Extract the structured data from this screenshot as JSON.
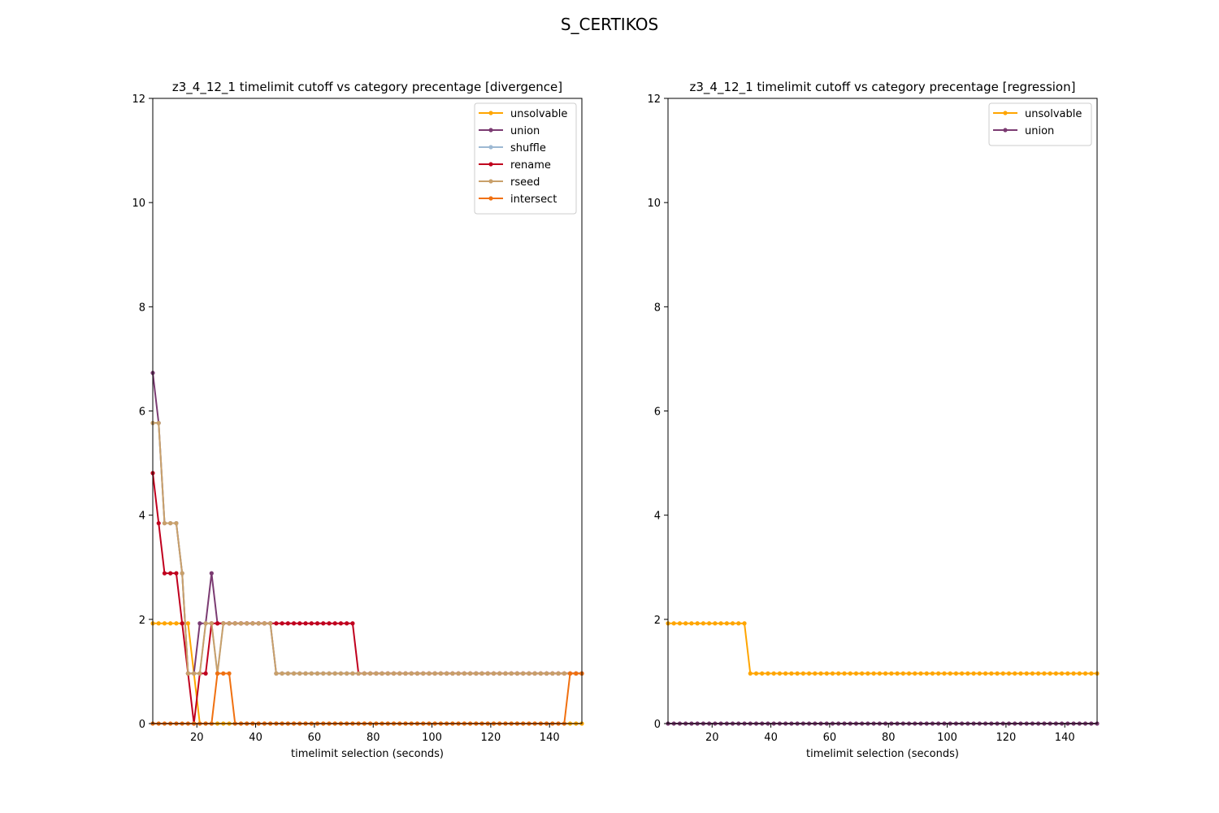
{
  "figure": {
    "suptitle": "S_CERTIKOS"
  },
  "chart_data": [
    {
      "type": "line",
      "title": "z3_4_12_1 timelimit cutoff vs category precentage [divergence]",
      "xlabel": "timelimit selection (seconds)",
      "ylabel": "",
      "xlim": [
        5,
        151
      ],
      "ylim": [
        0,
        12
      ],
      "xticks": [
        "20",
        "40",
        "60",
        "80",
        "100",
        "120",
        "140"
      ],
      "yticks": [
        "0",
        "2",
        "4",
        "6",
        "8",
        "10",
        "12"
      ],
      "grid": false,
      "legend_position": "top-right",
      "x_start": 5,
      "x_step": 2,
      "series": [
        {
          "name": "unsolvable",
          "color": "#FFA500",
          "segments": [
            {
              "from": 5,
              "to": 17,
              "value": 1.923
            },
            {
              "from": 19,
              "to": 19,
              "value": 0.962
            },
            {
              "from": 21,
              "to": 151,
              "value": 0
            }
          ]
        },
        {
          "name": "union",
          "color": "#7B3B72",
          "segments": [
            {
              "from": 5,
              "to": 5,
              "value": 6.731
            },
            {
              "from": 7,
              "to": 7,
              "value": 5.769
            },
            {
              "from": 9,
              "to": 13,
              "value": 3.846
            },
            {
              "from": 15,
              "to": 15,
              "value": 2.885
            },
            {
              "from": 17,
              "to": 19,
              "value": 0.962
            },
            {
              "from": 21,
              "to": 23,
              "value": 1.923
            },
            {
              "from": 25,
              "to": 25,
              "value": 2.885
            },
            {
              "from": 27,
              "to": 45,
              "value": 1.923
            },
            {
              "from": 47,
              "to": 151,
              "value": 0.962
            }
          ]
        },
        {
          "name": "shuffle",
          "color": "#9DB9D3",
          "segments": [
            {
              "from": 5,
              "to": 7,
              "value": 5.769
            },
            {
              "from": 9,
              "to": 13,
              "value": 3.846
            },
            {
              "from": 15,
              "to": 15,
              "value": 2.885
            },
            {
              "from": 17,
              "to": 21,
              "value": 0.962
            },
            {
              "from": 23,
              "to": 25,
              "value": 1.923
            },
            {
              "from": 27,
              "to": 27,
              "value": 0.962
            },
            {
              "from": 29,
              "to": 45,
              "value": 1.923
            },
            {
              "from": 47,
              "to": 151,
              "value": 0.962
            }
          ]
        },
        {
          "name": "rename",
          "color": "#C0001E",
          "segments": [
            {
              "from": 5,
              "to": 5,
              "value": 4.808
            },
            {
              "from": 7,
              "to": 7,
              "value": 3.846
            },
            {
              "from": 9,
              "to": 13,
              "value": 2.885
            },
            {
              "from": 15,
              "to": 15,
              "value": 1.923
            },
            {
              "from": 17,
              "to": 17,
              "value": 0.962
            },
            {
              "from": 19,
              "to": 19,
              "value": 0
            },
            {
              "from": 21,
              "to": 23,
              "value": 0.962
            },
            {
              "from": 25,
              "to": 73,
              "value": 1.923
            },
            {
              "from": 75,
              "to": 151,
              "value": 0.962
            }
          ]
        },
        {
          "name": "rseed",
          "color": "#C9A06A",
          "segments": [
            {
              "from": 5,
              "to": 7,
              "value": 5.769
            },
            {
              "from": 9,
              "to": 13,
              "value": 3.846
            },
            {
              "from": 15,
              "to": 15,
              "value": 2.885
            },
            {
              "from": 17,
              "to": 21,
              "value": 0.962
            },
            {
              "from": 23,
              "to": 25,
              "value": 1.923
            },
            {
              "from": 27,
              "to": 27,
              "value": 0.962
            },
            {
              "from": 29,
              "to": 45,
              "value": 1.923
            },
            {
              "from": 47,
              "to": 151,
              "value": 0.962
            }
          ]
        },
        {
          "name": "intersect",
          "color": "#F07010",
          "segments": [
            {
              "from": 5,
              "to": 25,
              "value": 0
            },
            {
              "from": 27,
              "to": 31,
              "value": 0.962
            },
            {
              "from": 33,
              "to": 145,
              "value": 0
            },
            {
              "from": 147,
              "to": 151,
              "value": 0.962
            }
          ]
        }
      ]
    },
    {
      "type": "line",
      "title": "z3_4_12_1 timelimit cutoff vs category precentage [regression]",
      "xlabel": "timelimit selection (seconds)",
      "ylabel": "",
      "xlim": [
        5,
        151
      ],
      "ylim": [
        0,
        12
      ],
      "xticks": [
        "20",
        "40",
        "60",
        "80",
        "100",
        "120",
        "140"
      ],
      "yticks": [
        "0",
        "2",
        "4",
        "6",
        "8",
        "10",
        "12"
      ],
      "grid": false,
      "legend_position": "top-right",
      "x_start": 5,
      "x_step": 2,
      "series": [
        {
          "name": "unsolvable",
          "color": "#FFA500",
          "segments": [
            {
              "from": 5,
              "to": 31,
              "value": 1.923
            },
            {
              "from": 33,
              "to": 151,
              "value": 0.962
            }
          ]
        },
        {
          "name": "union",
          "color": "#7B3B72",
          "segments": [
            {
              "from": 5,
              "to": 151,
              "value": 0
            }
          ]
        }
      ]
    }
  ]
}
